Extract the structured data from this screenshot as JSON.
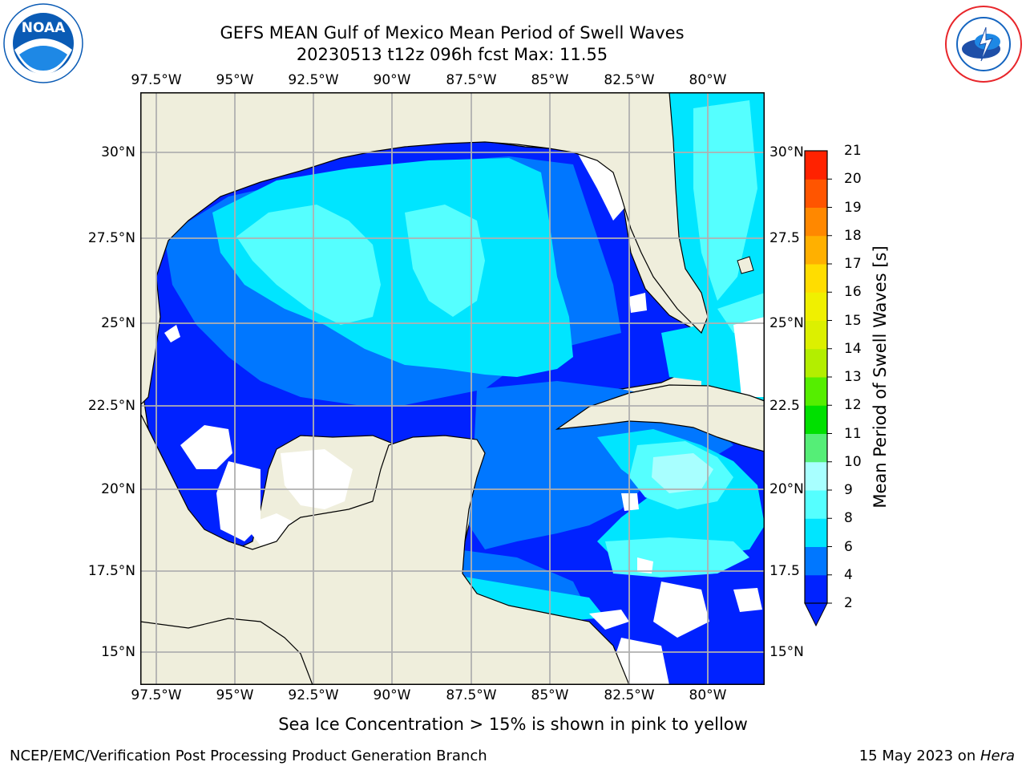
{
  "header": {
    "title": "GEFS MEAN Gulf of Mexico Mean Period of Swell Waves",
    "subtitle": "20230513 t12z 096h fcst   Max: 11.55"
  },
  "logos": {
    "left": {
      "text": "NOAA",
      "ring": "NATIONAL OCEANIC AND ATMOSPHERIC ADMINISTRATION · U.S. DEPARTMENT OF COMMERCE",
      "color": "#0a5bb5"
    },
    "right": {
      "ring": "NATIONAL WEATHER SERVICE",
      "color": "#e8262b"
    }
  },
  "map": {
    "lon_ticks": [
      "97.5°W",
      "95°W",
      "92.5°W",
      "90°W",
      "87.5°W",
      "85°W",
      "82.5°W",
      "80°W"
    ],
    "lat_ticks_left": [
      "30°N",
      "27.5°N",
      "25°N",
      "22.5°N",
      "20°N",
      "17.5°N",
      "15°N"
    ],
    "lat_ticks_right": [
      "30°N",
      "27.5",
      "25°N",
      "22.5",
      "20°N",
      "17.5",
      "15°N"
    ],
    "extent": {
      "lon": [
        -98,
        -78.2
      ],
      "lat": [
        14,
        31.8
      ]
    },
    "colors": {
      "land": "#efeedc",
      "ocean_blank": "#ffffff",
      "grid": "#b0b0b0"
    }
  },
  "colorbar": {
    "label": "Mean Period of Swell Waves [s]",
    "tick_labels": [
      "2",
      "4",
      "6",
      "8",
      "9",
      "10",
      "11",
      "12",
      "13",
      "14",
      "15",
      "16",
      "17",
      "18",
      "19",
      "20",
      "21"
    ],
    "colors": [
      "#0022ff",
      "#0077ff",
      "#00e5ff",
      "#55ffff",
      "#a8ffff",
      "#55ee77",
      "#00e000",
      "#55ee00",
      "#b3ee00",
      "#dcf000",
      "#f0f000",
      "#ffdd00",
      "#ffb000",
      "#ff8800",
      "#ff5500",
      "#ff2200",
      "#ff0000"
    ]
  },
  "notes": {
    "sea_ice": "Sea Ice Concentration > 15% is shown in pink to yellow"
  },
  "footer": {
    "left": "NCEP/EMC/Verification Post Processing Product Generation Branch",
    "date": "15 May 2023 on ",
    "host": "Hera"
  }
}
